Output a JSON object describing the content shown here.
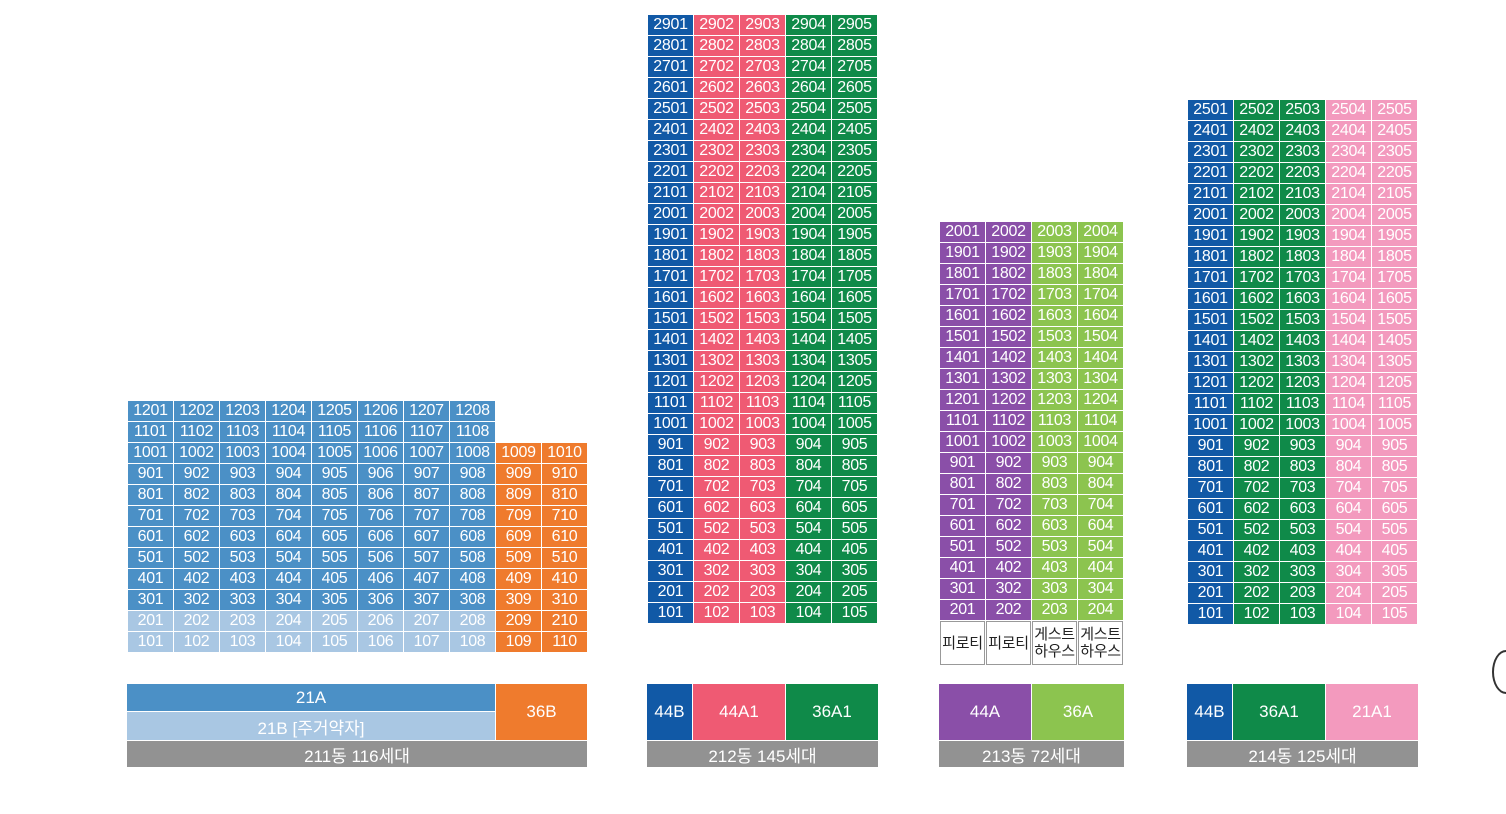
{
  "colors": {
    "b211_21A": "#4b90c6",
    "b211_21B": "#a9c7e3",
    "b211_36B": "#ef7b2d",
    "b212_44B": "#1159a6",
    "b212_44A1": "#ef5a73",
    "b212_36A1": "#0f8a49",
    "b213_44A": "#8a4fa8",
    "b213_36A": "#8cc44f",
    "b214_44B": "#1159a6",
    "b214_36A1": "#0f8a49",
    "b214_21A1": "#f39abe",
    "footer": "#929292"
  },
  "buildings": [
    {
      "id": "211",
      "floors": 12,
      "columns": [
        {
          "unit": 1,
          "type": "21A"
        },
        {
          "unit": 2,
          "type": "21A"
        },
        {
          "unit": 3,
          "type": "21A"
        },
        {
          "unit": 4,
          "type": "21A"
        },
        {
          "unit": 5,
          "type": "21A"
        },
        {
          "unit": 6,
          "type": "21A"
        },
        {
          "unit": 7,
          "type": "21A"
        },
        {
          "unit": 8,
          "type": "21A"
        },
        {
          "unit": 9,
          "type": "36B",
          "max_floor": 10
        },
        {
          "unit": 10,
          "type": "36B",
          "max_floor": 10
        }
      ],
      "low_floor_type": {
        "type": "21B",
        "floors": [
          1,
          2
        ],
        "columns": [
          1,
          2,
          3,
          4,
          5,
          6,
          7,
          8
        ]
      },
      "legend": {
        "a": "21A",
        "b": "21B [주거약자]",
        "c": "36B"
      },
      "footer": "211동 116세대"
    },
    {
      "id": "212",
      "floors": 29,
      "columns": [
        {
          "unit": 1,
          "type": "44B"
        },
        {
          "unit": 2,
          "type": "44A1"
        },
        {
          "unit": 3,
          "type": "44A1"
        },
        {
          "unit": 4,
          "type": "36A1"
        },
        {
          "unit": 5,
          "type": "36A1"
        }
      ],
      "legend": [
        "44B",
        "44A1",
        "36A1"
      ],
      "footer": "212동 145세대"
    },
    {
      "id": "213",
      "floors": 20,
      "columns": [
        {
          "unit": 1,
          "type": "44A"
        },
        {
          "unit": 2,
          "type": "44A"
        },
        {
          "unit": 3,
          "type": "36A"
        },
        {
          "unit": 4,
          "type": "36A"
        }
      ],
      "ground_labels": [
        "피로티",
        "피로티",
        "게스트\n하우스",
        "게스트\n하우스"
      ],
      "legend": [
        "44A",
        "36A"
      ],
      "footer": "213동 72세대"
    },
    {
      "id": "214",
      "floors": 25,
      "columns": [
        {
          "unit": 1,
          "type": "44B"
        },
        {
          "unit": 2,
          "type": "36A1"
        },
        {
          "unit": 3,
          "type": "36A1"
        },
        {
          "unit": 4,
          "type": "21A1"
        },
        {
          "unit": 5,
          "type": "21A1"
        }
      ],
      "legend": [
        "44B",
        "36A1",
        "21A1"
      ],
      "footer": "214동 125세대"
    }
  ]
}
